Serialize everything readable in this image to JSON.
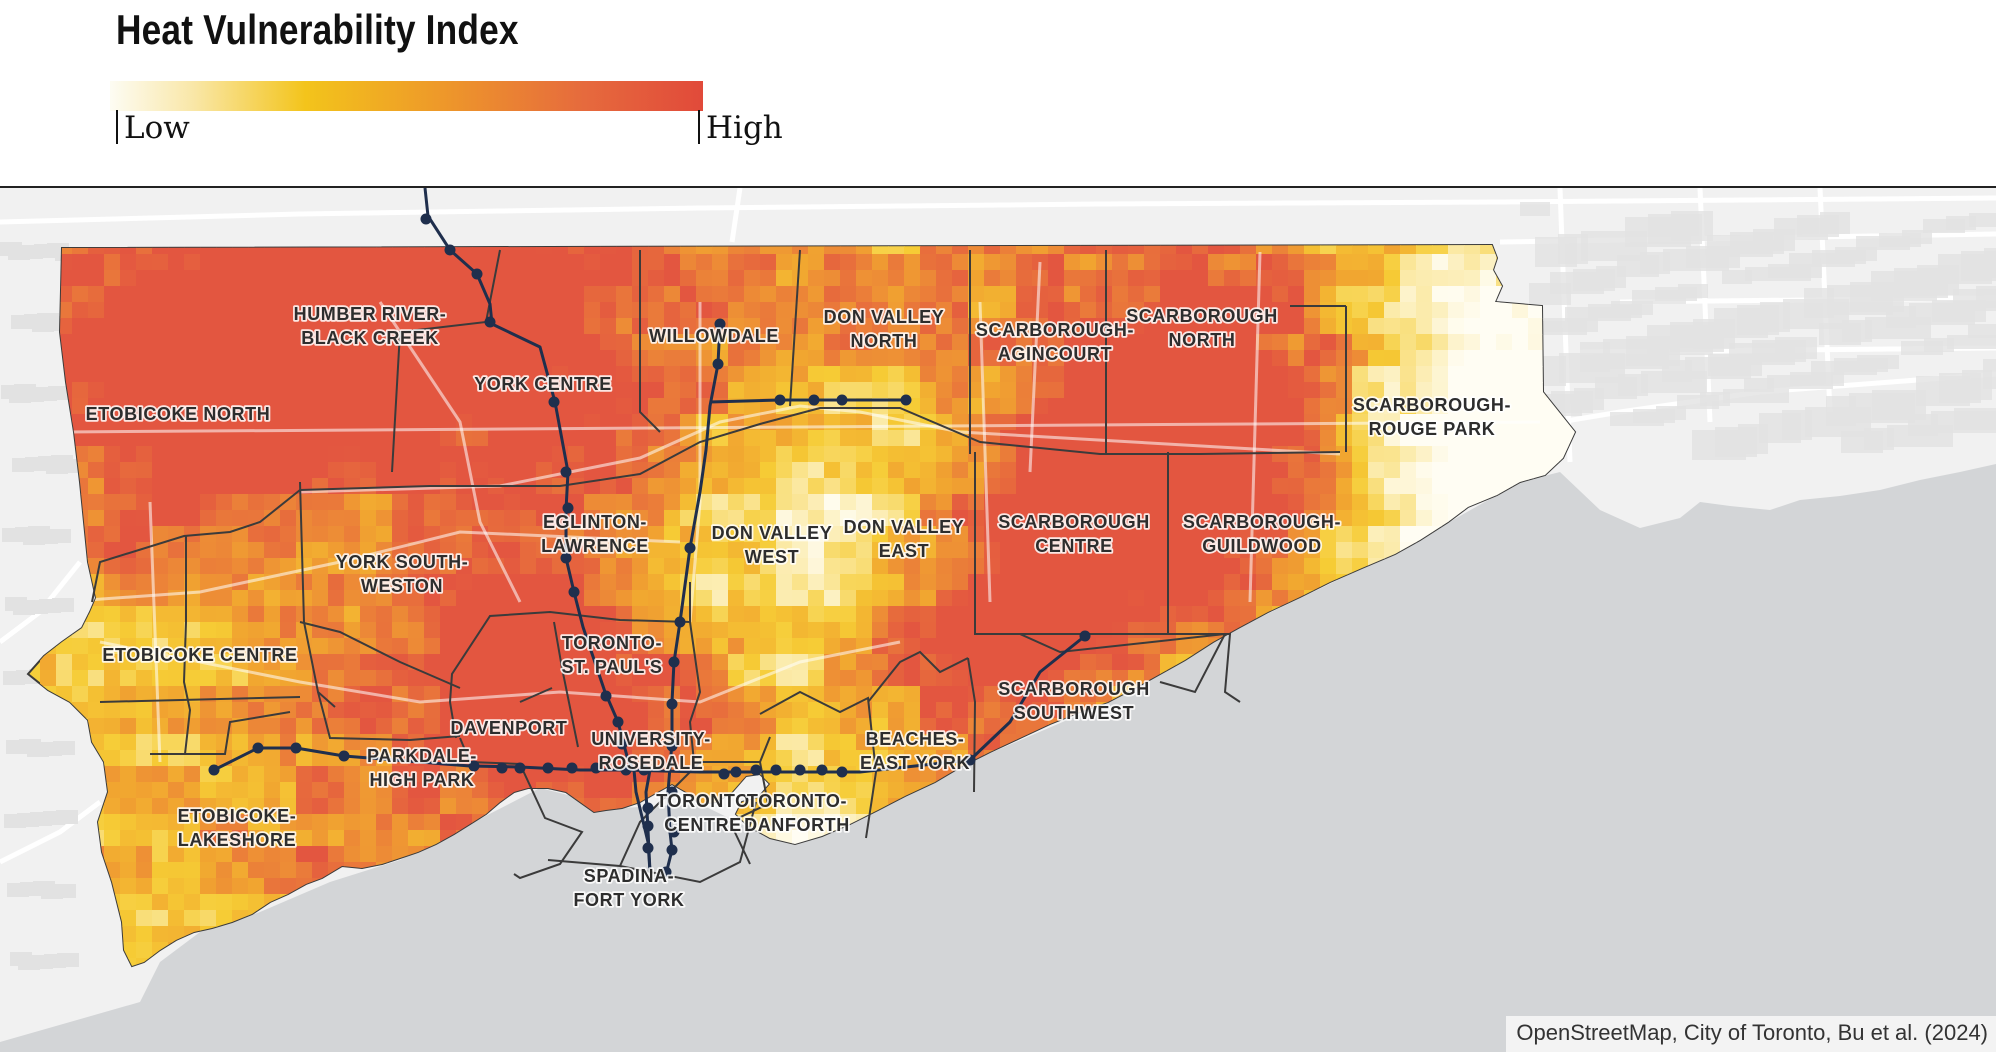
{
  "legend": {
    "title": "Heat Vulnerability Index",
    "low_label": "Low",
    "high_label": "High",
    "gradient_colors": [
      "#fdfcf3",
      "#f3c41b",
      "#ee9a29",
      "#e14a3a"
    ]
  },
  "map": {
    "districts": [
      {
        "id": "humber-river-black-creek",
        "lines": [
          "HUMBER RIVER-",
          "BLACK CREEK"
        ]
      },
      {
        "id": "willowdale",
        "lines": [
          "WILLOWDALE"
        ]
      },
      {
        "id": "don-valley-north",
        "lines": [
          "DON VALLEY",
          "NORTH"
        ]
      },
      {
        "id": "scarborough-agincourt",
        "lines": [
          "SCARBOROUGH-",
          "AGINCOURT"
        ]
      },
      {
        "id": "scarborough-north",
        "lines": [
          "SCARBOROUGH",
          "NORTH"
        ]
      },
      {
        "id": "york-centre",
        "lines": [
          "YORK CENTRE"
        ]
      },
      {
        "id": "etobicoke-north",
        "lines": [
          "ETOBICOKE NORTH"
        ]
      },
      {
        "id": "scarborough-rouge-park",
        "lines": [
          "SCARBOROUGH-",
          "ROUGE PARK"
        ]
      },
      {
        "id": "eglinton-lawrence",
        "lines": [
          "EGLINTON-",
          "LAWRENCE"
        ]
      },
      {
        "id": "don-valley-west",
        "lines": [
          "DON VALLEY",
          "WEST"
        ]
      },
      {
        "id": "don-valley-east",
        "lines": [
          "DON VALLEY",
          "EAST"
        ]
      },
      {
        "id": "scarborough-centre",
        "lines": [
          "SCARBOROUGH",
          "CENTRE"
        ]
      },
      {
        "id": "scarborough-guildwood",
        "lines": [
          "SCARBOROUGH-",
          "GUILDWOOD"
        ]
      },
      {
        "id": "york-south-weston",
        "lines": [
          "YORK SOUTH-",
          "WESTON"
        ]
      },
      {
        "id": "etobicoke-centre",
        "lines": [
          "ETOBICOKE CENTRE"
        ]
      },
      {
        "id": "toronto-st-pauls",
        "lines": [
          "TORONTO-",
          "ST. PAUL'S"
        ]
      },
      {
        "id": "scarborough-southwest",
        "lines": [
          "SCARBOROUGH",
          "SOUTHWEST"
        ]
      },
      {
        "id": "davenport",
        "lines": [
          "DAVENPORT"
        ]
      },
      {
        "id": "university-rosedale",
        "lines": [
          "UNIVERSITY-",
          "ROSEDALE"
        ]
      },
      {
        "id": "beaches-east-york",
        "lines": [
          "BEACHES-",
          "EAST YORK"
        ]
      },
      {
        "id": "parkdale-high-park",
        "lines": [
          "PARKDALE-",
          "HIGH PARK"
        ]
      },
      {
        "id": "toronto-centre",
        "lines": [
          "TORONTO",
          "CENTRE"
        ]
      },
      {
        "id": "toronto-danforth",
        "lines": [
          "TORONTO-",
          "DANFORTH"
        ]
      },
      {
        "id": "etobicoke-lakeshore",
        "lines": [
          "ETOBICOKE-",
          "LAKESHORE"
        ]
      },
      {
        "id": "spadina-fort-york",
        "lines": [
          "SPADINA-",
          "FORT YORK"
        ]
      }
    ],
    "colors": {
      "lake": "#d3d5d7",
      "land": "#f1f1f1",
      "boundary": "#3b3b3b",
      "subway": "#1f2f4d",
      "index_low": "#fdf8e3",
      "index_mid": "#f3c41b",
      "index_high": "#e35a40"
    }
  },
  "attribution": "OpenStreetMap, City of Toronto, Bu et al. (2024)"
}
